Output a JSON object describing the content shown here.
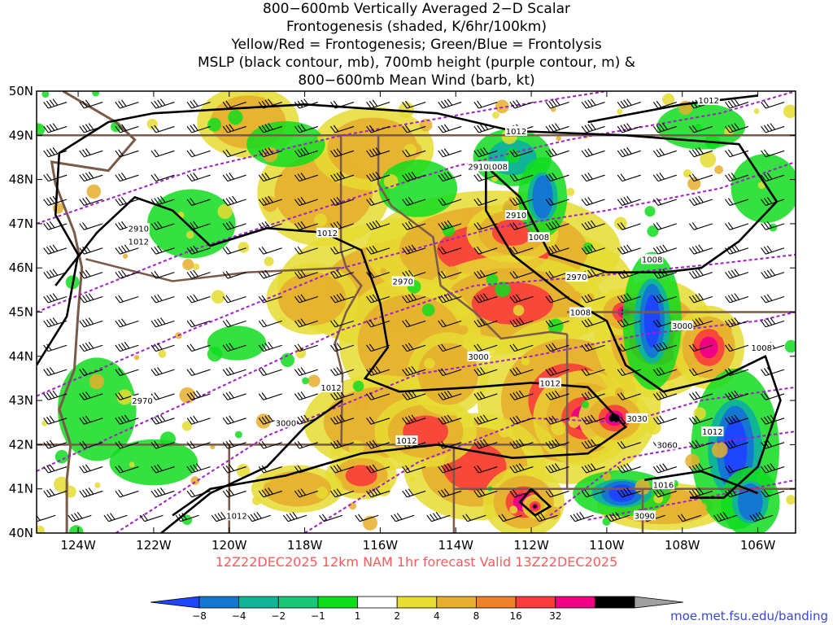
{
  "title": {
    "line1": "800−600mb Vertically Averaged 2−D Scalar",
    "line2": "Frontogenesis (shaded, K/6hr/100km)",
    "line3": "Yellow/Red = Frontogenesis;  Green/Blue = Frontolysis",
    "line4": "MSLP (black contour, mb), 700mb height (purple contour, m) &",
    "line5": "800−600mb Mean Wind (barb, kt)"
  },
  "map": {
    "lat_range": [
      40,
      50
    ],
    "lon_range": [
      -125.1,
      -105.0
    ],
    "lat_ticks": [
      "40N",
      "41N",
      "42N",
      "43N",
      "44N",
      "45N",
      "46N",
      "47N",
      "48N",
      "49N",
      "50N"
    ],
    "lon_ticks": [
      "124W",
      "122W",
      "120W",
      "118W",
      "116W",
      "114W",
      "112W",
      "110W",
      "108W",
      "106W"
    ],
    "lon_tick_values": [
      -124,
      -122,
      -120,
      -118,
      -116,
      -114,
      -112,
      -110,
      -108,
      -106
    ],
    "colors": {
      "mslp_contour": "#000000",
      "height_contour": "#a020c8",
      "borders": "#7a5a48",
      "barbs": "#000000"
    }
  },
  "mslp_labels": [
    {
      "text": "1012",
      "lon": -107.3,
      "lat": 49.8
    },
    {
      "text": "1012",
      "lon": -112.4,
      "lat": 49.1
    },
    {
      "text": "1008",
      "lon": -112.9,
      "lat": 48.3
    },
    {
      "text": "1008",
      "lon": -111.8,
      "lat": 46.7
    },
    {
      "text": "1012",
      "lon": -117.4,
      "lat": 46.8
    },
    {
      "text": "1012",
      "lon": -122.4,
      "lat": 46.6
    },
    {
      "text": "1008",
      "lon": -108.8,
      "lat": 46.2
    },
    {
      "text": "1008",
      "lon": -110.7,
      "lat": 45.0
    },
    {
      "text": "1012",
      "lon": -117.3,
      "lat": 43.3
    },
    {
      "text": "1012",
      "lon": -111.5,
      "lat": 43.4
    },
    {
      "text": "1008",
      "lon": -105.9,
      "lat": 44.2
    },
    {
      "text": "1012",
      "lon": -115.3,
      "lat": 42.1
    },
    {
      "text": "1012",
      "lon": -107.2,
      "lat": 42.3
    },
    {
      "text": "1016",
      "lon": -108.5,
      "lat": 41.1
    },
    {
      "text": "1012",
      "lon": -119.8,
      "lat": 40.4
    }
  ],
  "height_labels": [
    {
      "text": "2910",
      "lon": -113.4,
      "lat": 48.3
    },
    {
      "text": "2910",
      "lon": -112.4,
      "lat": 47.2
    },
    {
      "text": "2910",
      "lon": -122.4,
      "lat": 46.9
    },
    {
      "text": "2970",
      "lon": -115.4,
      "lat": 45.7
    },
    {
      "text": "2970",
      "lon": -110.8,
      "lat": 45.8
    },
    {
      "text": "3000",
      "lon": -108.0,
      "lat": 44.7
    },
    {
      "text": "3000",
      "lon": -113.4,
      "lat": 44.0
    },
    {
      "text": "2970",
      "lon": -122.3,
      "lat": 43.0
    },
    {
      "text": "3000",
      "lon": -118.5,
      "lat": 42.5
    },
    {
      "text": "3030",
      "lon": -109.2,
      "lat": 42.6
    },
    {
      "text": "3060",
      "lon": -108.4,
      "lat": 42.0
    },
    {
      "text": "3090",
      "lon": -109.0,
      "lat": 40.4
    }
  ],
  "colorbar": {
    "labels": [
      "−8",
      "−4",
      "−2",
      "−1",
      "1",
      "2",
      "4",
      "8",
      "16",
      "32"
    ],
    "colors": [
      "#1e46ff",
      "#1478d2",
      "#10b496",
      "#18c878",
      "#10dc1e",
      "#ffffff",
      "#e6dc32",
      "#e6af2d",
      "#f08228",
      "#fa3c3c",
      "#f00082",
      "#000000",
      "#a0a0a0"
    ]
  },
  "valid_line": "12Z22DEC2025  12km NAM 1hr forecast Valid 13Z22DEC2025",
  "credit": "moe.met.fsu.edu/banding"
}
